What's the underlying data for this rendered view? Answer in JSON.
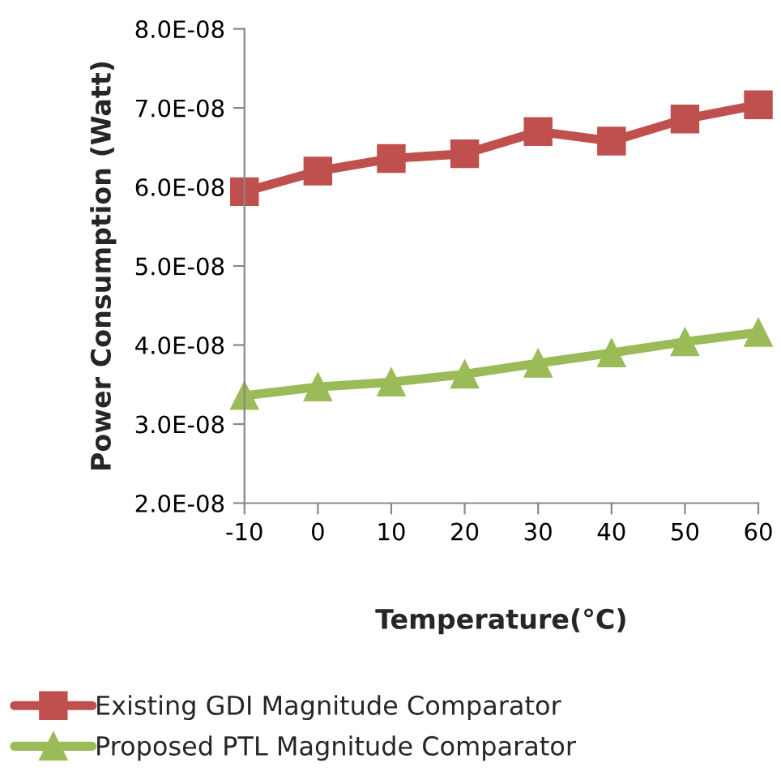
{
  "chart_data": {
    "type": "line",
    "xlabel": "Temperature(°C)",
    "ylabel": "Power Consumption (Watt)",
    "categories": [
      "-10",
      "0",
      "10",
      "20",
      "30",
      "40",
      "50",
      "60"
    ],
    "series": [
      {
        "name": "Existing GDI Magnitude Comparator",
        "color": "#c0504d",
        "marker": "square",
        "values": [
          5.94e-08,
          6.2e-08,
          6.36e-08,
          6.42e-08,
          6.7e-08,
          6.58e-08,
          6.86e-08,
          7.04e-08
        ]
      },
      {
        "name": "Proposed PTL Magnitude Comparator",
        "color": "#9bbb59",
        "marker": "triangle",
        "values": [
          3.36e-08,
          3.47e-08,
          3.53e-08,
          3.63e-08,
          3.77e-08,
          3.9e-08,
          4.04e-08,
          4.16e-08
        ]
      }
    ],
    "ylim": [
      2e-08,
      8e-08
    ],
    "yticks": [
      {
        "value": 2e-08,
        "label": "2.0E-08"
      },
      {
        "value": 3e-08,
        "label": "3.0E-08"
      },
      {
        "value": 4e-08,
        "label": "4.0E-08"
      },
      {
        "value": 5e-08,
        "label": "5.0E-08"
      },
      {
        "value": 6e-08,
        "label": "6.0E-08"
      },
      {
        "value": 7e-08,
        "label": "7.0E-08"
      },
      {
        "value": 8e-08,
        "label": "8.0E-08"
      }
    ],
    "grid": false,
    "legend": "bottom",
    "line_style": "solid"
  }
}
